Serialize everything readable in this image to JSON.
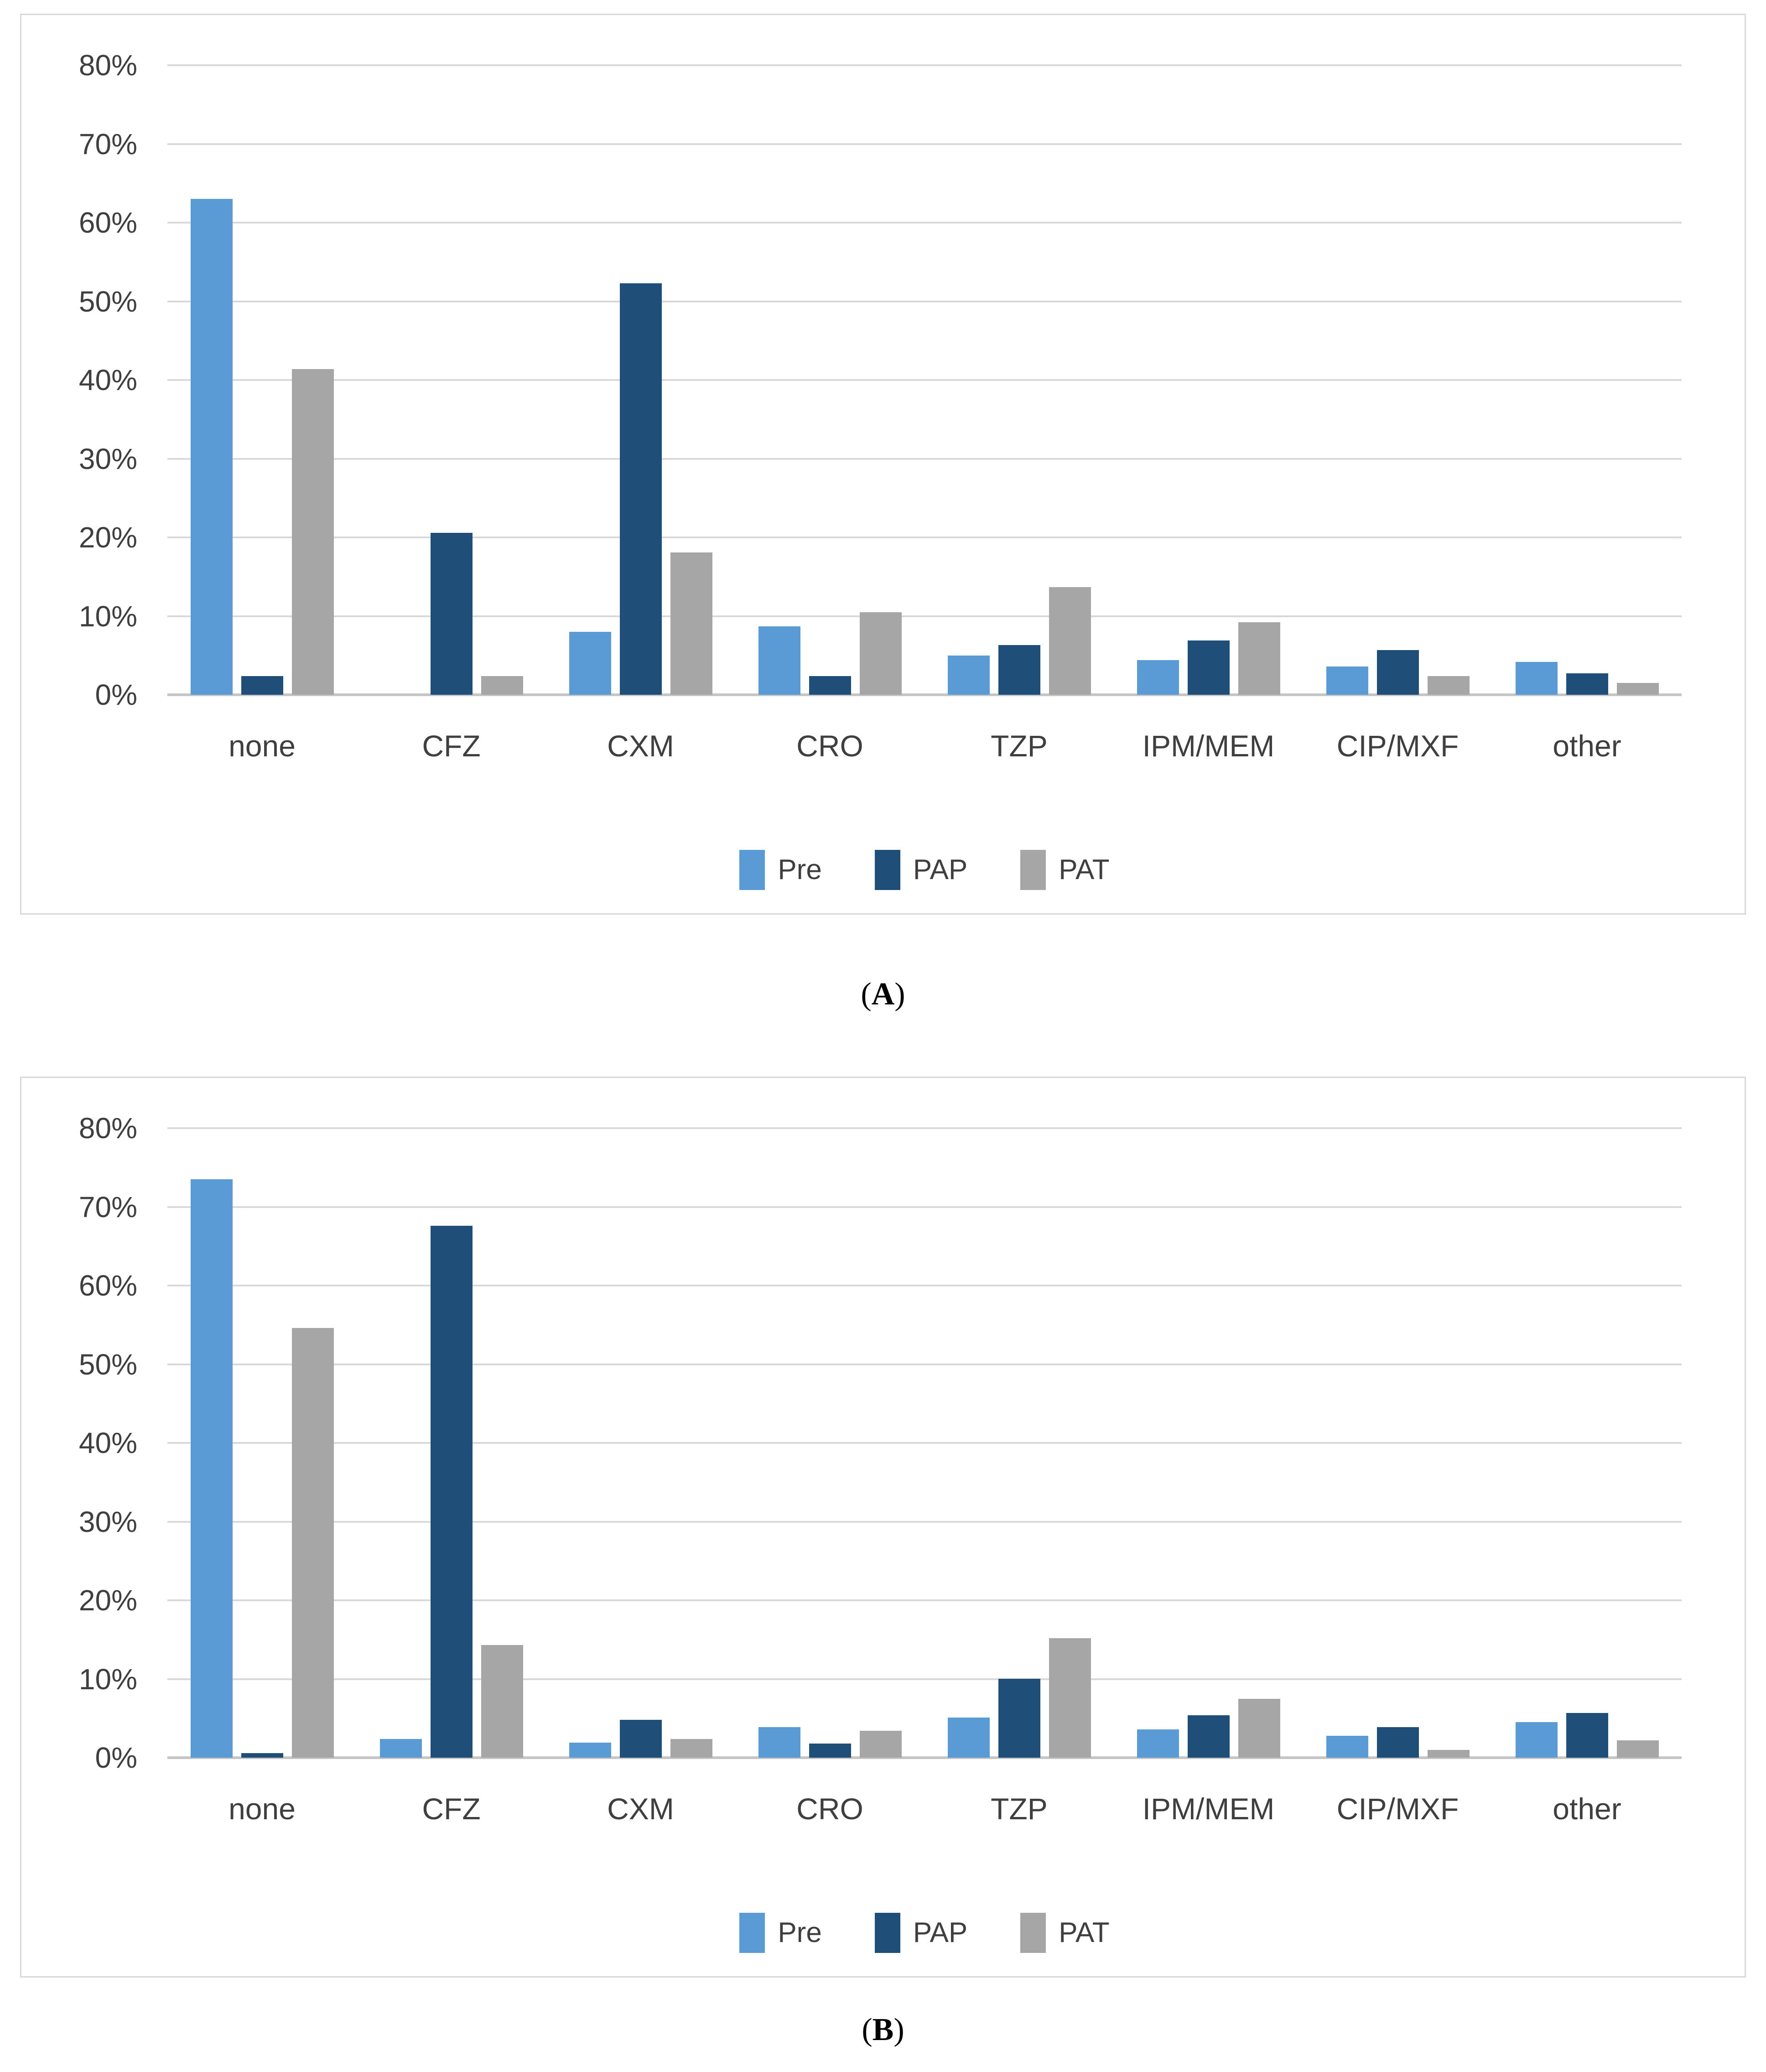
{
  "figure": {
    "background": "#ffffff",
    "panel_border_color": "#D9D9D9",
    "gridline_color": "#D9D9D9",
    "axis_line_color": "#C6C6C6",
    "tick_label_color": "#3F3F3F"
  },
  "captions": [
    {
      "prefix": "(",
      "label": "A",
      "suffix": ")"
    },
    {
      "prefix": "(",
      "label": "B",
      "suffix": ")"
    }
  ],
  "axis": {
    "min": 0,
    "max": 80,
    "step": 10,
    "tick_suffix": "%"
  },
  "legend": {
    "position": "bottom",
    "items": [
      {
        "name": "Pre",
        "color": "#5B9BD5"
      },
      {
        "name": "PAP",
        "color": "#1F4E79"
      },
      {
        "name": "PAT",
        "color": "#A6A6A6"
      }
    ]
  },
  "chart_data": [
    {
      "type": "bar",
      "panel": "A",
      "title": "",
      "xlabel": "",
      "ylabel": "",
      "ylim": [
        0,
        80
      ],
      "ytick_step": 10,
      "ytick_format": "percent",
      "grid": true,
      "legend_position": "bottom",
      "categories": [
        "none",
        "CFZ",
        "CXM",
        "CRO",
        "TZP",
        "IPM/MEM",
        "CIP/MXF",
        "other"
      ],
      "series": [
        {
          "name": "Pre",
          "color": "#5B9BD5",
          "values": [
            63.0,
            0.0,
            8.0,
            8.7,
            5.0,
            4.4,
            3.6,
            4.2
          ]
        },
        {
          "name": "PAP",
          "color": "#1F4E79",
          "values": [
            2.4,
            20.6,
            52.3,
            2.4,
            6.3,
            6.9,
            5.7,
            2.7
          ]
        },
        {
          "name": "PAT",
          "color": "#A6A6A6",
          "values": [
            41.4,
            2.4,
            18.1,
            10.5,
            13.7,
            9.2,
            2.4,
            1.5
          ]
        }
      ]
    },
    {
      "type": "bar",
      "panel": "B",
      "title": "",
      "xlabel": "",
      "ylabel": "",
      "ylim": [
        0,
        80
      ],
      "ytick_step": 10,
      "ytick_format": "percent",
      "grid": true,
      "legend_position": "bottom",
      "categories": [
        "none",
        "CFZ",
        "CXM",
        "CRO",
        "TZP",
        "IPM/MEM",
        "CIP/MXF",
        "other"
      ],
      "series": [
        {
          "name": "Pre",
          "color": "#5B9BD5",
          "values": [
            73.5,
            2.4,
            1.9,
            3.9,
            5.1,
            3.6,
            2.8,
            4.5
          ]
        },
        {
          "name": "PAP",
          "color": "#1F4E79",
          "values": [
            0.6,
            67.6,
            4.8,
            1.8,
            10.0,
            5.4,
            3.9,
            5.7
          ]
        },
        {
          "name": "PAT",
          "color": "#A6A6A6",
          "values": [
            54.6,
            14.3,
            2.4,
            3.4,
            15.2,
            7.5,
            1.0,
            2.2
          ]
        }
      ]
    }
  ]
}
